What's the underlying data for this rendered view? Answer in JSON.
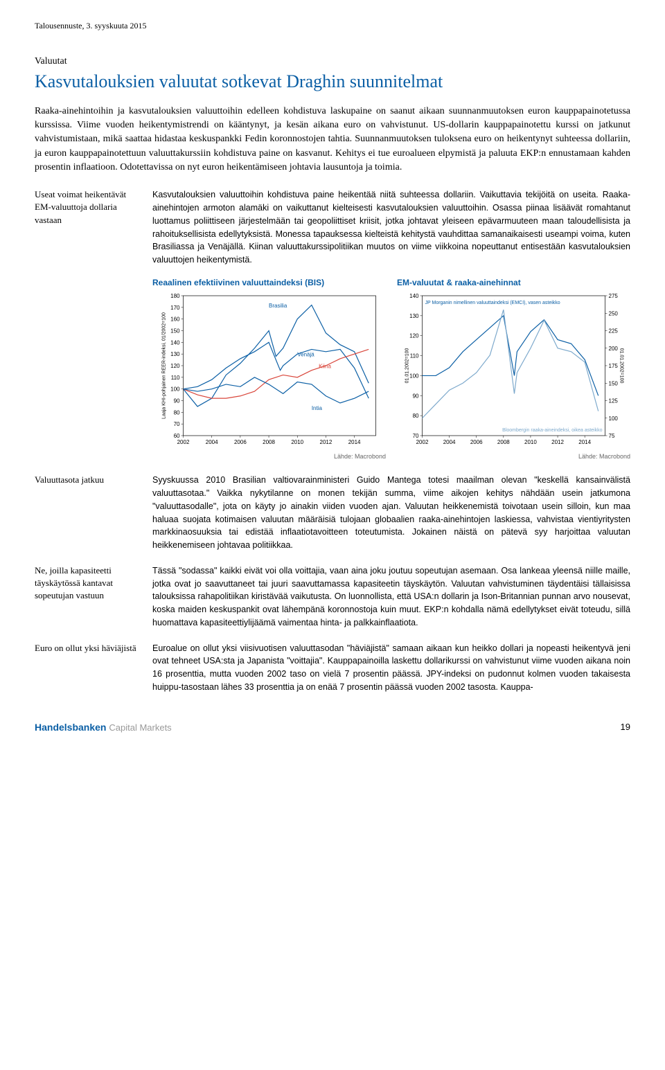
{
  "header": "Talousennuste, 3. syyskuuta 2015",
  "section_label": "Valuutat",
  "title": "Kasvutalouksien valuutat sotkevat Draghin suunnitelmat",
  "lead": "Raaka-ainehintoihin ja kasvutalouksien valuuttoihin edelleen kohdistuva laskupaine on saanut aikaan suunnanmuutoksen euron kauppapainotetussa kurssissa. Viime vuoden heikentymistrendi on kääntynyt, ja kesän aikana euro on vahvistunut. US-dollarin kauppapainotettu kurssi on jatkunut vahvistumistaan, mikä saattaa hidastaa keskuspankki Fedin koronnostojen tahtia. Suunnanmuutoksen tuloksena euro on heikentynyt suhteessa dollariin, ja euron kauppapainotettuun valuuttakurssiin kohdistuva paine on kasvanut. Kehitys ei tue euroalueen elpymistä ja paluuta EKP:n ennustamaan kahden prosentin inflaatioon. Odotettavissa on nyt euron heikentämiseen johtavia lausuntoja ja toimia.",
  "blocks": [
    {
      "side": "Useat voimat heikentävät EM-valuuttoja dollaria vastaan",
      "body": "Kasvutalouksien valuuttoihin kohdistuva paine heikentää niitä suhteessa dollariin. Vaikuttavia tekijöitä on useita. Raaka-ainehintojen armoton alamäki on vaikuttanut kielteisesti kasvutalouksien valuuttoihin. Osassa piinaa lisäävät romahtanut luottamus poliittiseen järjestelmään tai geopoliittiset kriisit, jotka johtavat yleiseen epävarmuuteen maan taloudellisista ja rahoituksellisista edellytyksistä. Monessa tapauksessa kielteistä kehitystä vauhdittaa samanaikaisesti useampi voima, kuten Brasiliassa ja Venäjällä. Kiinan valuuttakurssipolitiikan muutos on viime viikkoina nopeuttanut entisestään kasvutalouksien valuuttojen heikentymistä."
    },
    {
      "side": "Valuuttasota jatkuu",
      "body": "Syyskuussa 2010 Brasilian valtiovarainministeri Guido Mantega totesi maailman olevan \"keskellä kansainvälistä valuuttasotaa.\" Vaikka nykytilanne on monen tekijän summa, viime aikojen kehitys nähdään usein jatkumona \"valuuttasodalle\", jota on käyty jo ainakin viiden vuoden ajan. Valuutan heikkenemistä toivotaan usein silloin, kun maa haluaa suojata kotimaisen valuutan määräisiä tulojaan globaalien raaka-ainehintojen laskiessa, vahvistaa vientiyritysten markkinaosuuksia tai edistää inflaatiotavoitteen toteutumista. Jokainen näistä on pätevä syy harjoittaa valuutan heikkenemiseen johtavaa politiikkaa."
    },
    {
      "side": "Ne, joilla kapasiteetti täyskäytössä kantavat sopeutujan vastuun",
      "body": "Tässä \"sodassa\" kaikki eivät voi olla voittajia, vaan aina joku joutuu sopeutujan asemaan. Osa lankeaa yleensä niille maille, jotka ovat jo saavuttaneet tai juuri saavuttamassa kapasiteetin täyskäytön. Valuutan vahvistuminen täydentäisi tällaisissa talouksissa rahapolitiikan kiristävää vaikutusta. On luonnollista, että USA:n dollarin ja Ison-Britannian punnan arvo nousevat, koska maiden keskuspankit ovat lähempänä koronnostoja kuin muut. EKP:n kohdalla nämä edellytykset eivät toteudu, sillä huomattava kapasiteettiylijäämä vaimentaa hinta- ja palkkainflaatiota."
    },
    {
      "side": "Euro on ollut yksi häviäjistä",
      "body": "Euroalue on ollut yksi viisivuotisen valuuttasodan \"häviäjistä\" samaan aikaan kun heikko dollari ja nopeasti heikentyvä jeni ovat tehneet USA:sta ja Japanista \"voittajia\". Kauppapainoilla laskettu dollarikurssi on vahvistunut viime vuoden aikana noin 16 prosenttia, mutta vuoden 2002 taso on vielä 7 prosentin päässä. JPY-indeksi on pudonnut kolmen vuoden takaisesta huippu-tasostaan lähes 33 prosenttia ja on enää 7 prosentin päässä vuoden 2002 tasosta. Kauppa-"
    }
  ],
  "chart1": {
    "title": "Reaalinen efektiivinen valuuttaindeksi (BIS)",
    "ylabel": "Laaja KHI-pohjainen REER-indeksi, 01/2002=100",
    "source": "Lähde: Macrobond",
    "x_ticks": [
      "2002",
      "2004",
      "2006",
      "2008",
      "2010",
      "2012",
      "2014"
    ],
    "y_ticks": [
      60,
      70,
      80,
      90,
      100,
      110,
      120,
      130,
      140,
      150,
      160,
      170,
      180
    ],
    "ylim": [
      60,
      180
    ],
    "series": [
      {
        "name": "Brasilia",
        "label": "Brasilia",
        "color": "#0b5fa5",
        "label_y": 170,
        "label_x": 2008,
        "points": [
          [
            2002,
            100
          ],
          [
            2003,
            85
          ],
          [
            2004,
            92
          ],
          [
            2005,
            112
          ],
          [
            2006,
            122
          ],
          [
            2007,
            135
          ],
          [
            2008,
            150
          ],
          [
            2008.5,
            128
          ],
          [
            2009,
            135
          ],
          [
            2010,
            160
          ],
          [
            2011,
            172
          ],
          [
            2012,
            148
          ],
          [
            2013,
            138
          ],
          [
            2014,
            132
          ],
          [
            2015,
            105
          ]
        ]
      },
      {
        "name": "Venäjä",
        "label": "Venäjä",
        "color": "#0b5fa5",
        "label_y": 128,
        "label_x": 2010,
        "points": [
          [
            2002,
            100
          ],
          [
            2003,
            102
          ],
          [
            2004,
            108
          ],
          [
            2005,
            118
          ],
          [
            2006,
            126
          ],
          [
            2007,
            132
          ],
          [
            2008,
            140
          ],
          [
            2008.8,
            116
          ],
          [
            2009,
            120
          ],
          [
            2010,
            130
          ],
          [
            2011,
            134
          ],
          [
            2012,
            132
          ],
          [
            2013,
            134
          ],
          [
            2014,
            118
          ],
          [
            2015,
            92
          ]
        ]
      },
      {
        "name": "Kiina",
        "label": "Kiina",
        "color": "#d9453a",
        "label_y": 118,
        "label_x": 2011.5,
        "points": [
          [
            2002,
            100
          ],
          [
            2003,
            95
          ],
          [
            2004,
            92
          ],
          [
            2005,
            92
          ],
          [
            2006,
            94
          ],
          [
            2007,
            98
          ],
          [
            2008,
            108
          ],
          [
            2009,
            112
          ],
          [
            2010,
            110
          ],
          [
            2011,
            116
          ],
          [
            2012,
            120
          ],
          [
            2013,
            126
          ],
          [
            2014,
            130
          ],
          [
            2015,
            134
          ]
        ]
      },
      {
        "name": "Intia",
        "label": "Intia",
        "color": "#0b5fa5",
        "label_y": 82,
        "label_x": 2011,
        "points": [
          [
            2002,
            100
          ],
          [
            2003,
            98
          ],
          [
            2004,
            100
          ],
          [
            2005,
            104
          ],
          [
            2006,
            102
          ],
          [
            2007,
            110
          ],
          [
            2008,
            104
          ],
          [
            2009,
            96
          ],
          [
            2010,
            106
          ],
          [
            2011,
            104
          ],
          [
            2012,
            94
          ],
          [
            2013,
            88
          ],
          [
            2014,
            92
          ],
          [
            2015,
            98
          ]
        ]
      }
    ]
  },
  "chart2": {
    "title": "EM-valuutat & raaka-ainehinnat",
    "ylabel_left": "01.01.2002=100",
    "ylabel_right": "01.01.2002=100",
    "legend_top": "JP Morganin nimellinen valuuttaindeksi (EMCI), vasen asteikko",
    "legend_bottom": "Bloombergin raaka-aineindeksi, oikea asteikko",
    "source": "Lähde: Macrobond",
    "x_ticks": [
      "2002",
      "2004",
      "2006",
      "2008",
      "2010",
      "2012",
      "2014"
    ],
    "y_left_ticks": [
      70,
      80,
      90,
      100,
      110,
      120,
      130,
      140
    ],
    "y_right_ticks": [
      75,
      100,
      125,
      150,
      175,
      200,
      225,
      250,
      275
    ],
    "ylim_left": [
      70,
      140
    ],
    "ylim_right": [
      75,
      275
    ],
    "series": [
      {
        "name": "EMCI",
        "color": "#0b5fa5",
        "axis": "left",
        "points": [
          [
            2002,
            100
          ],
          [
            2003,
            100
          ],
          [
            2004,
            104
          ],
          [
            2005,
            112
          ],
          [
            2006,
            118
          ],
          [
            2007,
            124
          ],
          [
            2008,
            130
          ],
          [
            2008.8,
            100
          ],
          [
            2009,
            112
          ],
          [
            2010,
            122
          ],
          [
            2011,
            128
          ],
          [
            2012,
            118
          ],
          [
            2013,
            116
          ],
          [
            2014,
            108
          ],
          [
            2015,
            90
          ]
        ]
      },
      {
        "name": "Bloomberg",
        "color": "#7da9cc",
        "axis": "right",
        "points": [
          [
            2002,
            100
          ],
          [
            2003,
            120
          ],
          [
            2004,
            140
          ],
          [
            2005,
            150
          ],
          [
            2006,
            165
          ],
          [
            2007,
            190
          ],
          [
            2008,
            255
          ],
          [
            2008.8,
            135
          ],
          [
            2009,
            165
          ],
          [
            2010,
            200
          ],
          [
            2011,
            240
          ],
          [
            2012,
            200
          ],
          [
            2013,
            195
          ],
          [
            2014,
            180
          ],
          [
            2015,
            110
          ]
        ]
      }
    ]
  },
  "footer_brand": "Handelsbanken",
  "footer_sub": "Capital Markets",
  "page_number": "19",
  "colors": {
    "primary": "#0b5fa5",
    "red": "#d9453a",
    "light_blue": "#7da9cc",
    "grid": "#cccccc"
  }
}
